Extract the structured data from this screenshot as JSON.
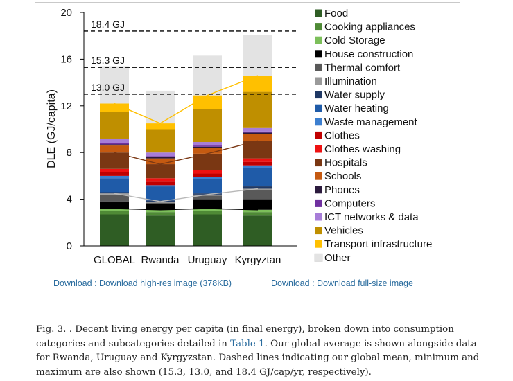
{
  "chart_data": {
    "type": "bar",
    "stacked": true,
    "categories": [
      "GLOBAL",
      "Rwanda",
      "Uruguay",
      "Kyrgyztan"
    ],
    "ylabel": "DLE (GJ/capita)",
    "xlabel": "",
    "ylim": [
      0,
      20
    ],
    "yticks": [
      0,
      4,
      8,
      12,
      16,
      20
    ],
    "grid": false,
    "legend_position": "right",
    "series": [
      {
        "name": "Food",
        "color": "#2f5d24",
        "values": [
          2.7,
          2.6,
          2.7,
          2.6
        ]
      },
      {
        "name": "Cooking appliances",
        "color": "#4f8a36",
        "values": [
          0.3,
          0.3,
          0.3,
          0.3
        ]
      },
      {
        "name": "Cold Storage",
        "color": "#7cbf5a",
        "values": [
          0.2,
          0.2,
          0.2,
          0.2
        ]
      },
      {
        "name": "House construction",
        "color": "#000000",
        "values": [
          0.6,
          0.5,
          0.8,
          0.9
        ]
      },
      {
        "name": "Thermal comfort",
        "color": "#595959",
        "values": [
          0.6,
          0.1,
          0.3,
          0.8
        ]
      },
      {
        "name": "Illumination",
        "color": "#9a9a9a",
        "values": [
          0.1,
          0.1,
          0.1,
          0.1
        ]
      },
      {
        "name": "Water supply",
        "color": "#1f3864",
        "values": [
          0.1,
          0.1,
          0.1,
          0.2
        ]
      },
      {
        "name": "Water heating",
        "color": "#1f5ba8",
        "values": [
          1.2,
          1.2,
          1.2,
          1.6
        ]
      },
      {
        "name": "Waste management",
        "color": "#3c7fd0",
        "values": [
          0.2,
          0.1,
          0.2,
          0.2
        ]
      },
      {
        "name": "Clothes",
        "color": "#c00000",
        "values": [
          0.3,
          0.3,
          0.3,
          0.3
        ]
      },
      {
        "name": "Clothes washing",
        "color": "#ee1111",
        "values": [
          0.3,
          0.3,
          0.3,
          0.3
        ]
      },
      {
        "name": "Hospitals",
        "color": "#7a3713",
        "values": [
          1.4,
          1.2,
          1.4,
          1.5
        ]
      },
      {
        "name": "Schools",
        "color": "#c55a11",
        "values": [
          0.6,
          0.5,
          0.5,
          0.6
        ]
      },
      {
        "name": "Phones",
        "color": "#2b1a3d",
        "values": [
          0.1,
          0.1,
          0.1,
          0.1
        ]
      },
      {
        "name": "Computers",
        "color": "#7030a0",
        "values": [
          0.1,
          0.1,
          0.1,
          0.1
        ]
      },
      {
        "name": "ICT networks & data",
        "color": "#a77dd8",
        "values": [
          0.4,
          0.3,
          0.3,
          0.3
        ]
      },
      {
        "name": "Vehicles",
        "color": "#bf8f00",
        "values": [
          2.3,
          2.0,
          2.8,
          3.1
        ]
      },
      {
        "name": "Transport infrastructure",
        "color": "#ffc000",
        "values": [
          0.7,
          0.5,
          1.2,
          1.4
        ]
      },
      {
        "name": "Other",
        "color": "#e3e3e3",
        "values": [
          3.2,
          2.8,
          3.4,
          3.5
        ]
      }
    ],
    "reference_lines": [
      {
        "label": "18.4 GJ",
        "value": 18.4
      },
      {
        "label": "15.3 GJ",
        "value": 15.3
      },
      {
        "label": "13.0 GJ",
        "value": 13.0
      }
    ],
    "connector_lines": [
      {
        "color": "#000000",
        "after_series": "Cold Storage"
      },
      {
        "color": "#b8b8b8",
        "after_series": "Illumination"
      },
      {
        "color": "#7a3713",
        "after_series": "Hospitals"
      },
      {
        "color": "#ffc000",
        "after_series": "Transport infrastructure"
      }
    ]
  },
  "links": {
    "download_highres": "Download : Download high-res image (378KB)",
    "download_fullsize": "Download : Download full-size image"
  },
  "caption": {
    "before_link": "Fig. 3. . Decent living energy per capita (in final energy), broken down into consumption categories and subcategories detailed in ",
    "link": "Table 1",
    "after_link": ". Our global average is shown alongside data for Rwanda, Uruguay and Kyrgyzstan. Dashed lines indicating our global mean, minimum and maximum are also shown (15.3, 13.0, and 18.4 GJ/cap/yr, respectively)."
  }
}
